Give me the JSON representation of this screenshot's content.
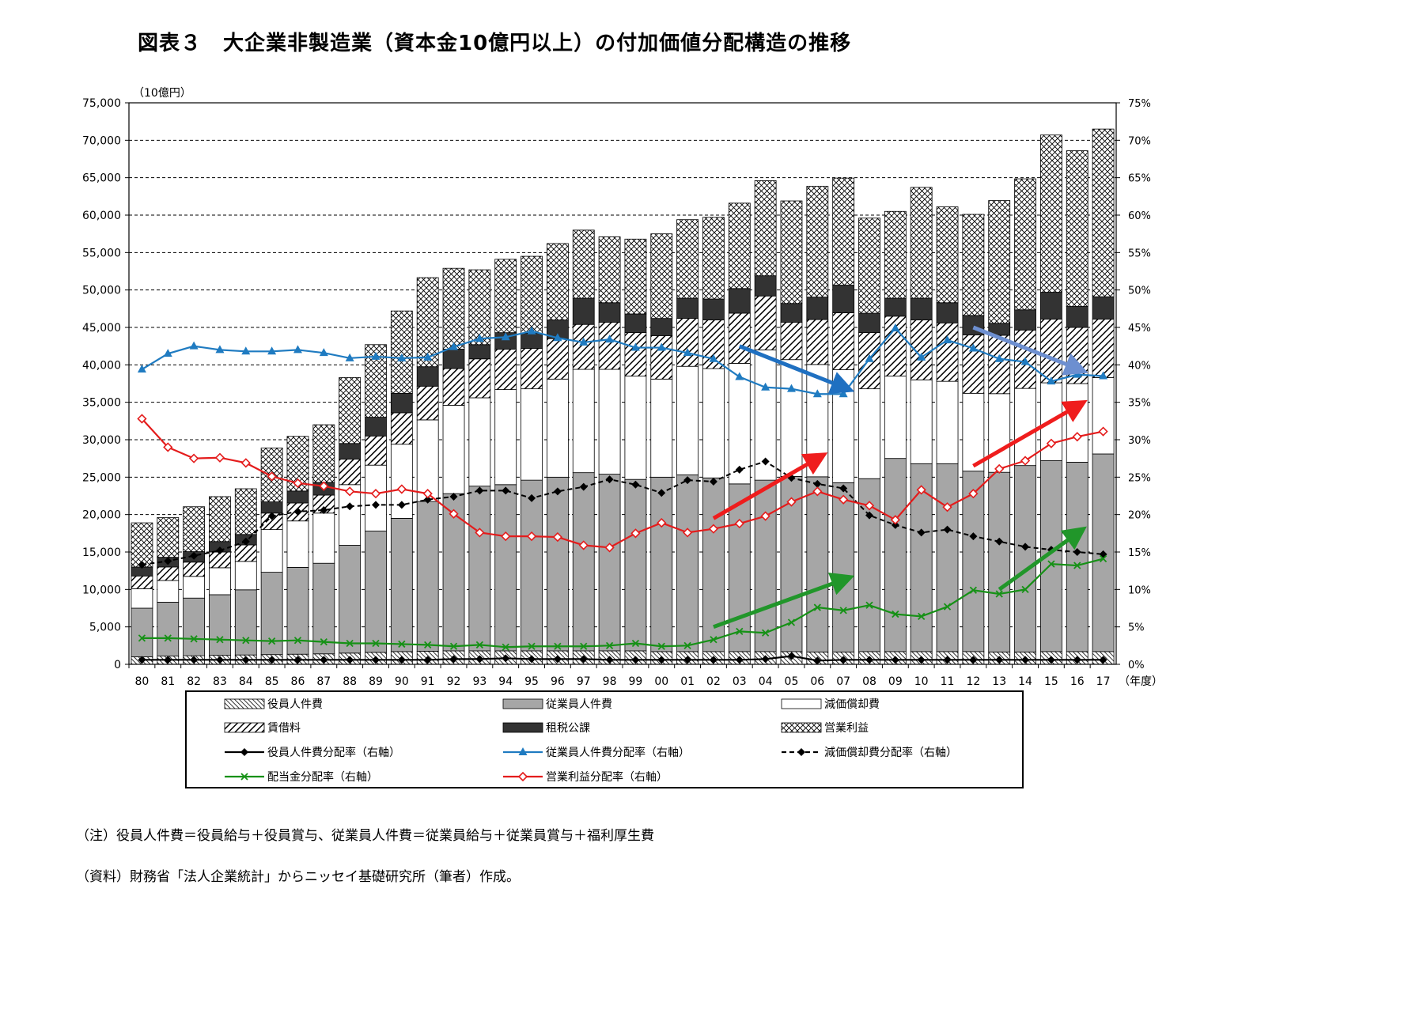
{
  "title": "図表３　大企業非製造業（資本金10億円以上）の付加価値分配構造の推移",
  "notes": [
    "（注）役員人件費＝役員給与＋役員賞与、従業員人件費＝従業員給与＋従業員賞与＋福利厚生費",
    "（資料）財務省「法人企業統計」からニッセイ基礎研究所（筆者）作成。"
  ],
  "colors": {
    "employee": "#a6a6a6",
    "tax": "#333333",
    "employee_rate": "#1f7bc1",
    "dividend_rate": "#169116",
    "profit_rate": "#e41c1c",
    "arrow_red": "#ef1d1d",
    "arrow_green": "#21962a",
    "arrow_blue": "#1f70c1",
    "arrow_lightblue": "#6d8fd0"
  },
  "chart_data": {
    "type": "bar",
    "stacked": true,
    "left_axis_unit": "（10億円）",
    "x_axis_unit": "（年度）",
    "ylim": [
      0,
      75000
    ],
    "yticks": [
      "0",
      "5,000",
      "10,000",
      "15,000",
      "20,000",
      "25,000",
      "30,000",
      "35,000",
      "40,000",
      "45,000",
      "50,000",
      "55,000",
      "60,000",
      "65,000",
      "70,000",
      "75,000"
    ],
    "y2lim": [
      0,
      75
    ],
    "y2ticks": [
      "0%",
      "5%",
      "10%",
      "15%",
      "20%",
      "25%",
      "30%",
      "35%",
      "40%",
      "45%",
      "50%",
      "55%",
      "60%",
      "65%",
      "70%",
      "75%"
    ],
    "grid": "horizontal dashed",
    "categories": [
      "80",
      "81",
      "82",
      "83",
      "84",
      "85",
      "86",
      "87",
      "88",
      "89",
      "90",
      "91",
      "92",
      "93",
      "94",
      "95",
      "96",
      "97",
      "98",
      "99",
      "00",
      "01",
      "02",
      "03",
      "04",
      "05",
      "06",
      "07",
      "08",
      "09",
      "10",
      "11",
      "12",
      "13",
      "14",
      "15",
      "16",
      "17"
    ],
    "series": [
      {
        "name": "役員人件費",
        "kind": "bar",
        "pattern": "dense-diag",
        "values": [
          1000,
          1100,
          1150,
          1200,
          1250,
          1300,
          1350,
          1400,
          1500,
          1600,
          1700,
          1750,
          1800,
          1800,
          1800,
          1800,
          1800,
          1800,
          1800,
          1800,
          1700,
          1700,
          1700,
          1700,
          1700,
          1700,
          1650,
          1650,
          1700,
          1700,
          1700,
          1700,
          1700,
          1650,
          1650,
          1700,
          1700,
          1700
        ]
      },
      {
        "name": "従業員人件費",
        "kind": "bar",
        "pattern": "gray",
        "values": [
          6500,
          7200,
          7700,
          8100,
          8700,
          11000,
          11600,
          12100,
          14400,
          16200,
          17800,
          20000,
          21000,
          22000,
          22200,
          22800,
          23200,
          23800,
          23600,
          22900,
          23300,
          23600,
          23200,
          22400,
          22900,
          23400,
          23400,
          22600,
          23100,
          25800,
          25100,
          25100,
          24100,
          24000,
          24900,
          25500,
          25300,
          26400
        ]
      },
      {
        "name": "減価償却費",
        "kind": "bar",
        "pattern": "white",
        "values": [
          2600,
          2900,
          2900,
          3600,
          3800,
          5700,
          6200,
          6700,
          8100,
          8800,
          9900,
          10900,
          11800,
          11800,
          12700,
          12200,
          13100,
          13800,
          14000,
          13800,
          13100,
          14500,
          14600,
          16100,
          17400,
          15600,
          15000,
          15100,
          12000,
          11000,
          11200,
          11000,
          10400,
          10500,
          10300,
          10400,
          10500,
          10200
        ]
      },
      {
        "name": "賃借料",
        "kind": "bar",
        "pattern": "wide-diag",
        "values": [
          1700,
          1800,
          1900,
          2100,
          2200,
          2200,
          2400,
          2400,
          3400,
          3900,
          4200,
          4500,
          4900,
          5200,
          5400,
          5400,
          5400,
          6000,
          6300,
          5800,
          5800,
          6400,
          6500,
          6700,
          7200,
          5000,
          6000,
          7600,
          7500,
          8000,
          8000,
          7800,
          7800,
          7800,
          7800,
          8500,
          7500,
          7800
        ]
      },
      {
        "name": "租税公課",
        "kind": "bar",
        "pattern": "dark",
        "values": [
          1200,
          1300,
          1400,
          1400,
          1400,
          1500,
          1600,
          1700,
          2100,
          2500,
          2600,
          2600,
          2600,
          1900,
          2200,
          2000,
          2500,
          3500,
          2600,
          2500,
          2300,
          2700,
          2800,
          3300,
          2700,
          2500,
          3000,
          3700,
          2600,
          2400,
          2900,
          2700,
          2600,
          1600,
          2700,
          3600,
          2800,
          3000
        ]
      },
      {
        "name": "営業利益",
        "kind": "bar",
        "pattern": "cross",
        "values": [
          5900,
          5300,
          6000,
          6000,
          6100,
          7200,
          7300,
          7700,
          8800,
          9700,
          11000,
          11900,
          10800,
          10000,
          9800,
          10300,
          10200,
          9100,
          8800,
          10000,
          11300,
          10500,
          10900,
          11400,
          12700,
          13700,
          14800,
          14300,
          12700,
          11600,
          14800,
          12800,
          13500,
          16400,
          17500,
          21000,
          20800,
          22400
        ]
      },
      {
        "name": "役員人件費分配率（右軸）",
        "kind": "line",
        "marker": "diamond",
        "color": "#000000",
        "values": [
          0.6,
          0.6,
          0.6,
          0.6,
          0.6,
          0.6,
          0.6,
          0.6,
          0.6,
          0.6,
          0.6,
          0.6,
          0.7,
          0.7,
          0.8,
          0.7,
          0.7,
          0.7,
          0.6,
          0.6,
          0.6,
          0.6,
          0.6,
          0.6,
          0.7,
          1.1,
          0.5,
          0.6,
          0.6,
          0.6,
          0.6,
          0.6,
          0.6,
          0.6,
          0.6,
          0.6,
          0.6,
          0.6
        ]
      },
      {
        "name": "従業員人件費分配率（右軸）",
        "kind": "line",
        "marker": "triangle",
        "color": "#1f7bc1",
        "values": [
          39.4,
          41.5,
          42.5,
          42.0,
          41.8,
          41.8,
          42.0,
          41.6,
          40.9,
          41.1,
          40.9,
          41.0,
          42.4,
          43.5,
          43.7,
          44.5,
          43.6,
          43.0,
          43.4,
          42.3,
          42.3,
          41.6,
          40.8,
          38.4,
          37.0,
          36.8,
          36.1,
          36.1,
          40.8,
          44.9,
          41.0,
          43.3,
          42.2,
          40.8,
          40.4,
          37.8,
          38.7,
          38.5
        ]
      },
      {
        "name": "減価償却費分配率（右軸）",
        "kind": "line",
        "marker": "diamond",
        "dashed": true,
        "color": "#000000",
        "values": [
          13.3,
          13.8,
          14.5,
          15.2,
          16.4,
          19.8,
          20.4,
          20.6,
          21.1,
          21.3,
          21.3,
          22.0,
          22.4,
          23.2,
          23.2,
          22.2,
          23.1,
          23.7,
          24.7,
          24.0,
          22.9,
          24.6,
          24.4,
          26.0,
          27.1,
          24.9,
          24.1,
          23.5,
          19.9,
          18.6,
          17.6,
          18.0,
          17.1,
          16.4,
          15.7,
          15.3,
          15.0,
          14.7
        ]
      },
      {
        "name": "配当金分配率（右軸）",
        "kind": "line",
        "marker": "x",
        "color": "#169116",
        "values": [
          3.5,
          3.5,
          3.4,
          3.3,
          3.2,
          3.1,
          3.2,
          3.0,
          2.8,
          2.8,
          2.7,
          2.6,
          2.4,
          2.6,
          2.3,
          2.4,
          2.4,
          2.4,
          2.5,
          2.8,
          2.4,
          2.5,
          3.3,
          4.4,
          4.2,
          5.6,
          7.6,
          7.2,
          7.9,
          6.7,
          6.4,
          7.7,
          9.9,
          9.4,
          10.0,
          13.4,
          13.2,
          14.1
        ]
      },
      {
        "name": "営業利益分配率（右軸）",
        "kind": "line",
        "marker": "open-diamond",
        "color": "#e41c1c",
        "values": [
          32.8,
          29.0,
          27.5,
          27.6,
          26.9,
          25.1,
          24.2,
          23.8,
          23.1,
          22.8,
          23.4,
          22.8,
          20.1,
          17.6,
          17.1,
          17.1,
          17.0,
          15.9,
          15.6,
          17.5,
          18.9,
          17.6,
          18.1,
          18.8,
          19.8,
          21.7,
          23.1,
          22.0,
          21.2,
          19.3,
          23.3,
          21.0,
          22.8,
          26.1,
          27.2,
          29.5,
          30.4,
          31.1
        ]
      }
    ],
    "legend_rows": [
      [
        "役員人件費",
        "従業員人件費",
        "減価償却費"
      ],
      [
        "賃借料",
        "租税公課",
        "営業利益"
      ],
      [
        "役員人件費分配率（右軸）",
        "従業員人件費分配率（右軸）",
        "減価償却費分配率（右軸）"
      ],
      [
        "配当金分配率（右軸）",
        "営業利益分配率（右軸）"
      ]
    ],
    "annotation_arrows": [
      {
        "color": "arrow_red",
        "from": [
          "02",
          19.5
        ],
        "to": [
          "06",
          27.5
        ]
      },
      {
        "color": "arrow_red",
        "from": [
          "12",
          26.5
        ],
        "to": [
          "16",
          34.5
        ]
      },
      {
        "color": "arrow_green",
        "from": [
          "02",
          5.0
        ],
        "to": [
          "07",
          11.3
        ]
      },
      {
        "color": "arrow_green",
        "from": [
          "13",
          10.0
        ],
        "to": [
          "16",
          17.5
        ]
      },
      {
        "color": "arrow_blue",
        "from": [
          "03",
          42.5
        ],
        "to": [
          "07",
          37.0
        ]
      },
      {
        "color": "arrow_lightblue",
        "from": [
          "12",
          45.0
        ],
        "to": [
          "16",
          39.5
        ]
      }
    ]
  }
}
